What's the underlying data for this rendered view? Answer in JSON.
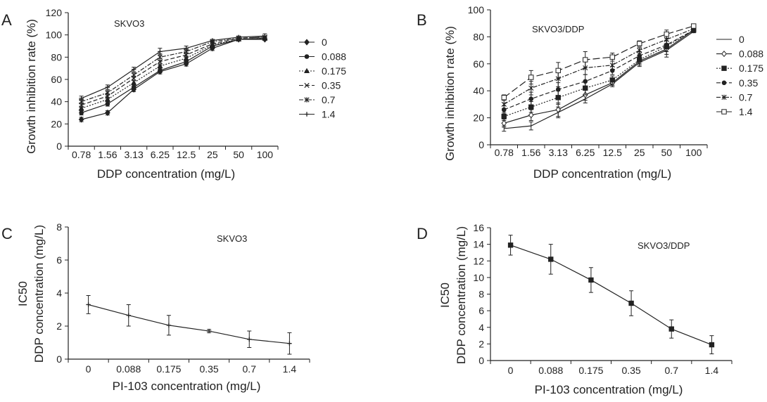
{
  "chart_data": [
    {
      "panel": "A",
      "type": "line",
      "title": "SKVO3",
      "xlabel": "DDP concentration (mg/L)",
      "ylabel": "Growth inhibition rate (%)",
      "categories": [
        "0.78",
        "1.56",
        "3.13",
        "6.25",
        "12.5",
        "25",
        "50",
        "100"
      ],
      "ylim": [
        0,
        120
      ],
      "yticks": [
        0,
        20,
        40,
        60,
        80,
        100,
        120
      ],
      "legend_position": "right",
      "series": [
        {
          "name": "0",
          "marker": "diamond",
          "dash": "",
          "values": [
            24,
            30,
            51,
            67,
            74,
            88,
            96,
            96
          ],
          "errors": [
            2,
            2,
            2,
            2,
            2,
            2,
            1,
            1
          ]
        },
        {
          "name": "0.088",
          "marker": "circle",
          "dash": "",
          "values": [
            30,
            38,
            53,
            68,
            76,
            90,
            96,
            97
          ],
          "errors": [
            2,
            2,
            2,
            2,
            2,
            2,
            1,
            1
          ]
        },
        {
          "name": "0.175",
          "marker": "triangle",
          "dash": "2,2",
          "values": [
            34,
            42,
            57,
            72,
            79,
            91,
            96,
            97
          ],
          "errors": [
            2,
            2,
            2,
            2,
            2,
            2,
            1,
            1
          ]
        },
        {
          "name": "0.35",
          "marker": "x",
          "dash": "6,3",
          "values": [
            37,
            45,
            61,
            76,
            82,
            92,
            97,
            98
          ],
          "errors": [
            2,
            2,
            2,
            3,
            2,
            2,
            1,
            1
          ]
        },
        {
          "name": "0.7",
          "marker": "star",
          "dash": "6,2,2,2",
          "values": [
            40,
            48,
            64,
            80,
            85,
            94,
            97,
            98
          ],
          "errors": [
            2,
            2,
            2,
            3,
            2,
            1,
            1,
            1
          ]
        },
        {
          "name": "1.4",
          "marker": "plus",
          "dash": "",
          "values": [
            43,
            53,
            69,
            85,
            88,
            95,
            98,
            99
          ],
          "errors": [
            2,
            2,
            2,
            3,
            2,
            1,
            1,
            2
          ]
        }
      ]
    },
    {
      "panel": "B",
      "type": "line",
      "title": "SKVO3/DDP",
      "xlabel": "DDP concentration (mg/L)",
      "ylabel": "Growth inhibition rate (%)",
      "categories": [
        "0.78",
        "1.56",
        "3.13",
        "6.25",
        "12.5",
        "25",
        "50",
        "100"
      ],
      "ylim": [
        0,
        100
      ],
      "yticks": [
        0,
        20,
        40,
        60,
        80,
        100
      ],
      "legend_position": "right",
      "series": [
        {
          "name": "0",
          "marker": "none",
          "dash": "",
          "values": [
            12,
            14,
            24,
            34,
            45,
            61,
            70,
            84
          ],
          "errors": [
            2,
            3,
            4,
            3,
            2,
            3,
            5,
            1
          ]
        },
        {
          "name": "0.088",
          "marker": "diamond-open",
          "dash": "",
          "values": [
            16,
            22,
            26,
            37,
            46,
            62,
            71,
            85
          ],
          "errors": [
            3,
            4,
            5,
            4,
            2,
            3,
            4,
            1
          ]
        },
        {
          "name": "0.175",
          "marker": "square",
          "dash": "2,2",
          "values": [
            21,
            28,
            35,
            42,
            48,
            63,
            73,
            85
          ],
          "errors": [
            3,
            4,
            5,
            5,
            3,
            3,
            4,
            1
          ]
        },
        {
          "name": "0.35",
          "marker": "circle",
          "dash": "6,3",
          "values": [
            26,
            34,
            41,
            47,
            55,
            66,
            74,
            85
          ],
          "errors": [
            3,
            5,
            5,
            5,
            3,
            3,
            3,
            1
          ]
        },
        {
          "name": "0.7",
          "marker": "star",
          "dash": "6,2,2,2",
          "values": [
            30,
            42,
            49,
            57,
            59,
            70,
            78,
            86
          ],
          "errors": [
            3,
            5,
            6,
            5,
            3,
            2,
            3,
            1
          ]
        },
        {
          "name": "1.4",
          "marker": "square-open",
          "dash": "10,4",
          "values": [
            35,
            50,
            55,
            63,
            65,
            75,
            82,
            88
          ],
          "errors": [
            2,
            5,
            6,
            6,
            3,
            2,
            3,
            1
          ]
        }
      ]
    },
    {
      "panel": "C",
      "type": "line",
      "title": "SKVO3",
      "xlabel": "PI-103 concentration (mg/L)",
      "ylabel_line1": "IC50",
      "ylabel_line2": "DDP concentration (mg/L)",
      "categories": [
        "0",
        "0.088",
        "0.175",
        "0.35",
        "0.7",
        "1.4"
      ],
      "ylim": [
        0,
        8
      ],
      "yticks": [
        0,
        2,
        4,
        6,
        8
      ],
      "series": [
        {
          "marker": "plus",
          "dash": "",
          "values": [
            3.3,
            2.65,
            2.05,
            1.7,
            1.2,
            0.95
          ],
          "errors": [
            0.55,
            0.65,
            0.6,
            0.1,
            0.5,
            0.65
          ]
        }
      ]
    },
    {
      "panel": "D",
      "type": "line",
      "title": "SKVO3/DDP",
      "xlabel": "PI-103 concentration (mg/L)",
      "ylabel_line1": "IC50",
      "ylabel_line2": "DDP concentration (mg/L)",
      "categories": [
        "0",
        "0.088",
        "0.175",
        "0.35",
        "0.7",
        "1.4"
      ],
      "ylim": [
        0,
        16
      ],
      "yticks": [
        0,
        2,
        4,
        6,
        8,
        10,
        12,
        14,
        16
      ],
      "series": [
        {
          "marker": "square",
          "dash": "",
          "values": [
            13.9,
            12.2,
            9.7,
            6.9,
            3.8,
            1.9
          ],
          "errors": [
            1.2,
            1.8,
            1.5,
            1.5,
            1.1,
            1.1
          ]
        }
      ]
    }
  ],
  "colors": {
    "ink": "#222222",
    "background": "#ffffff"
  }
}
